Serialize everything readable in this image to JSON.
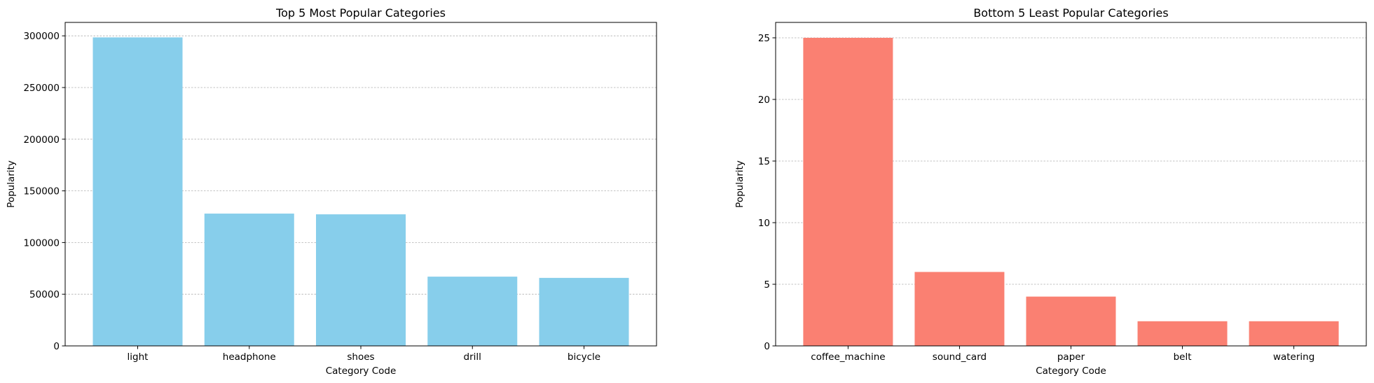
{
  "chart_data": [
    {
      "type": "bar",
      "title": "Top 5 Most Popular Categories",
      "xlabel": "Category Code",
      "ylabel": "Popularity",
      "categories": [
        "light",
        "headphone",
        "shoes",
        "drill",
        "bicycle"
      ],
      "values": [
        298500,
        128000,
        127300,
        67000,
        65800
      ],
      "ylim": [
        0,
        313000
      ],
      "yticks": [
        0,
        50000,
        100000,
        150000,
        200000,
        250000,
        300000
      ],
      "ytick_labels": [
        "0",
        "50000",
        "100000",
        "150000",
        "200000",
        "250000",
        "300000"
      ],
      "bar_color": "#87CEEB",
      "grid": "y, dashed"
    },
    {
      "type": "bar",
      "title": "Bottom 5 Least Popular Categories",
      "xlabel": "Category Code",
      "ylabel": "Popularity",
      "categories": [
        "coffee_machine",
        "sound_card",
        "paper",
        "belt",
        "watering"
      ],
      "values": [
        25,
        6,
        4,
        2,
        2
      ],
      "ylim": [
        0,
        26.25
      ],
      "yticks": [
        0,
        5,
        10,
        15,
        20,
        25
      ],
      "ytick_labels": [
        "0",
        "5",
        "10",
        "15",
        "20",
        "25"
      ],
      "bar_color": "#FA8072",
      "grid": "y, dashed"
    }
  ]
}
